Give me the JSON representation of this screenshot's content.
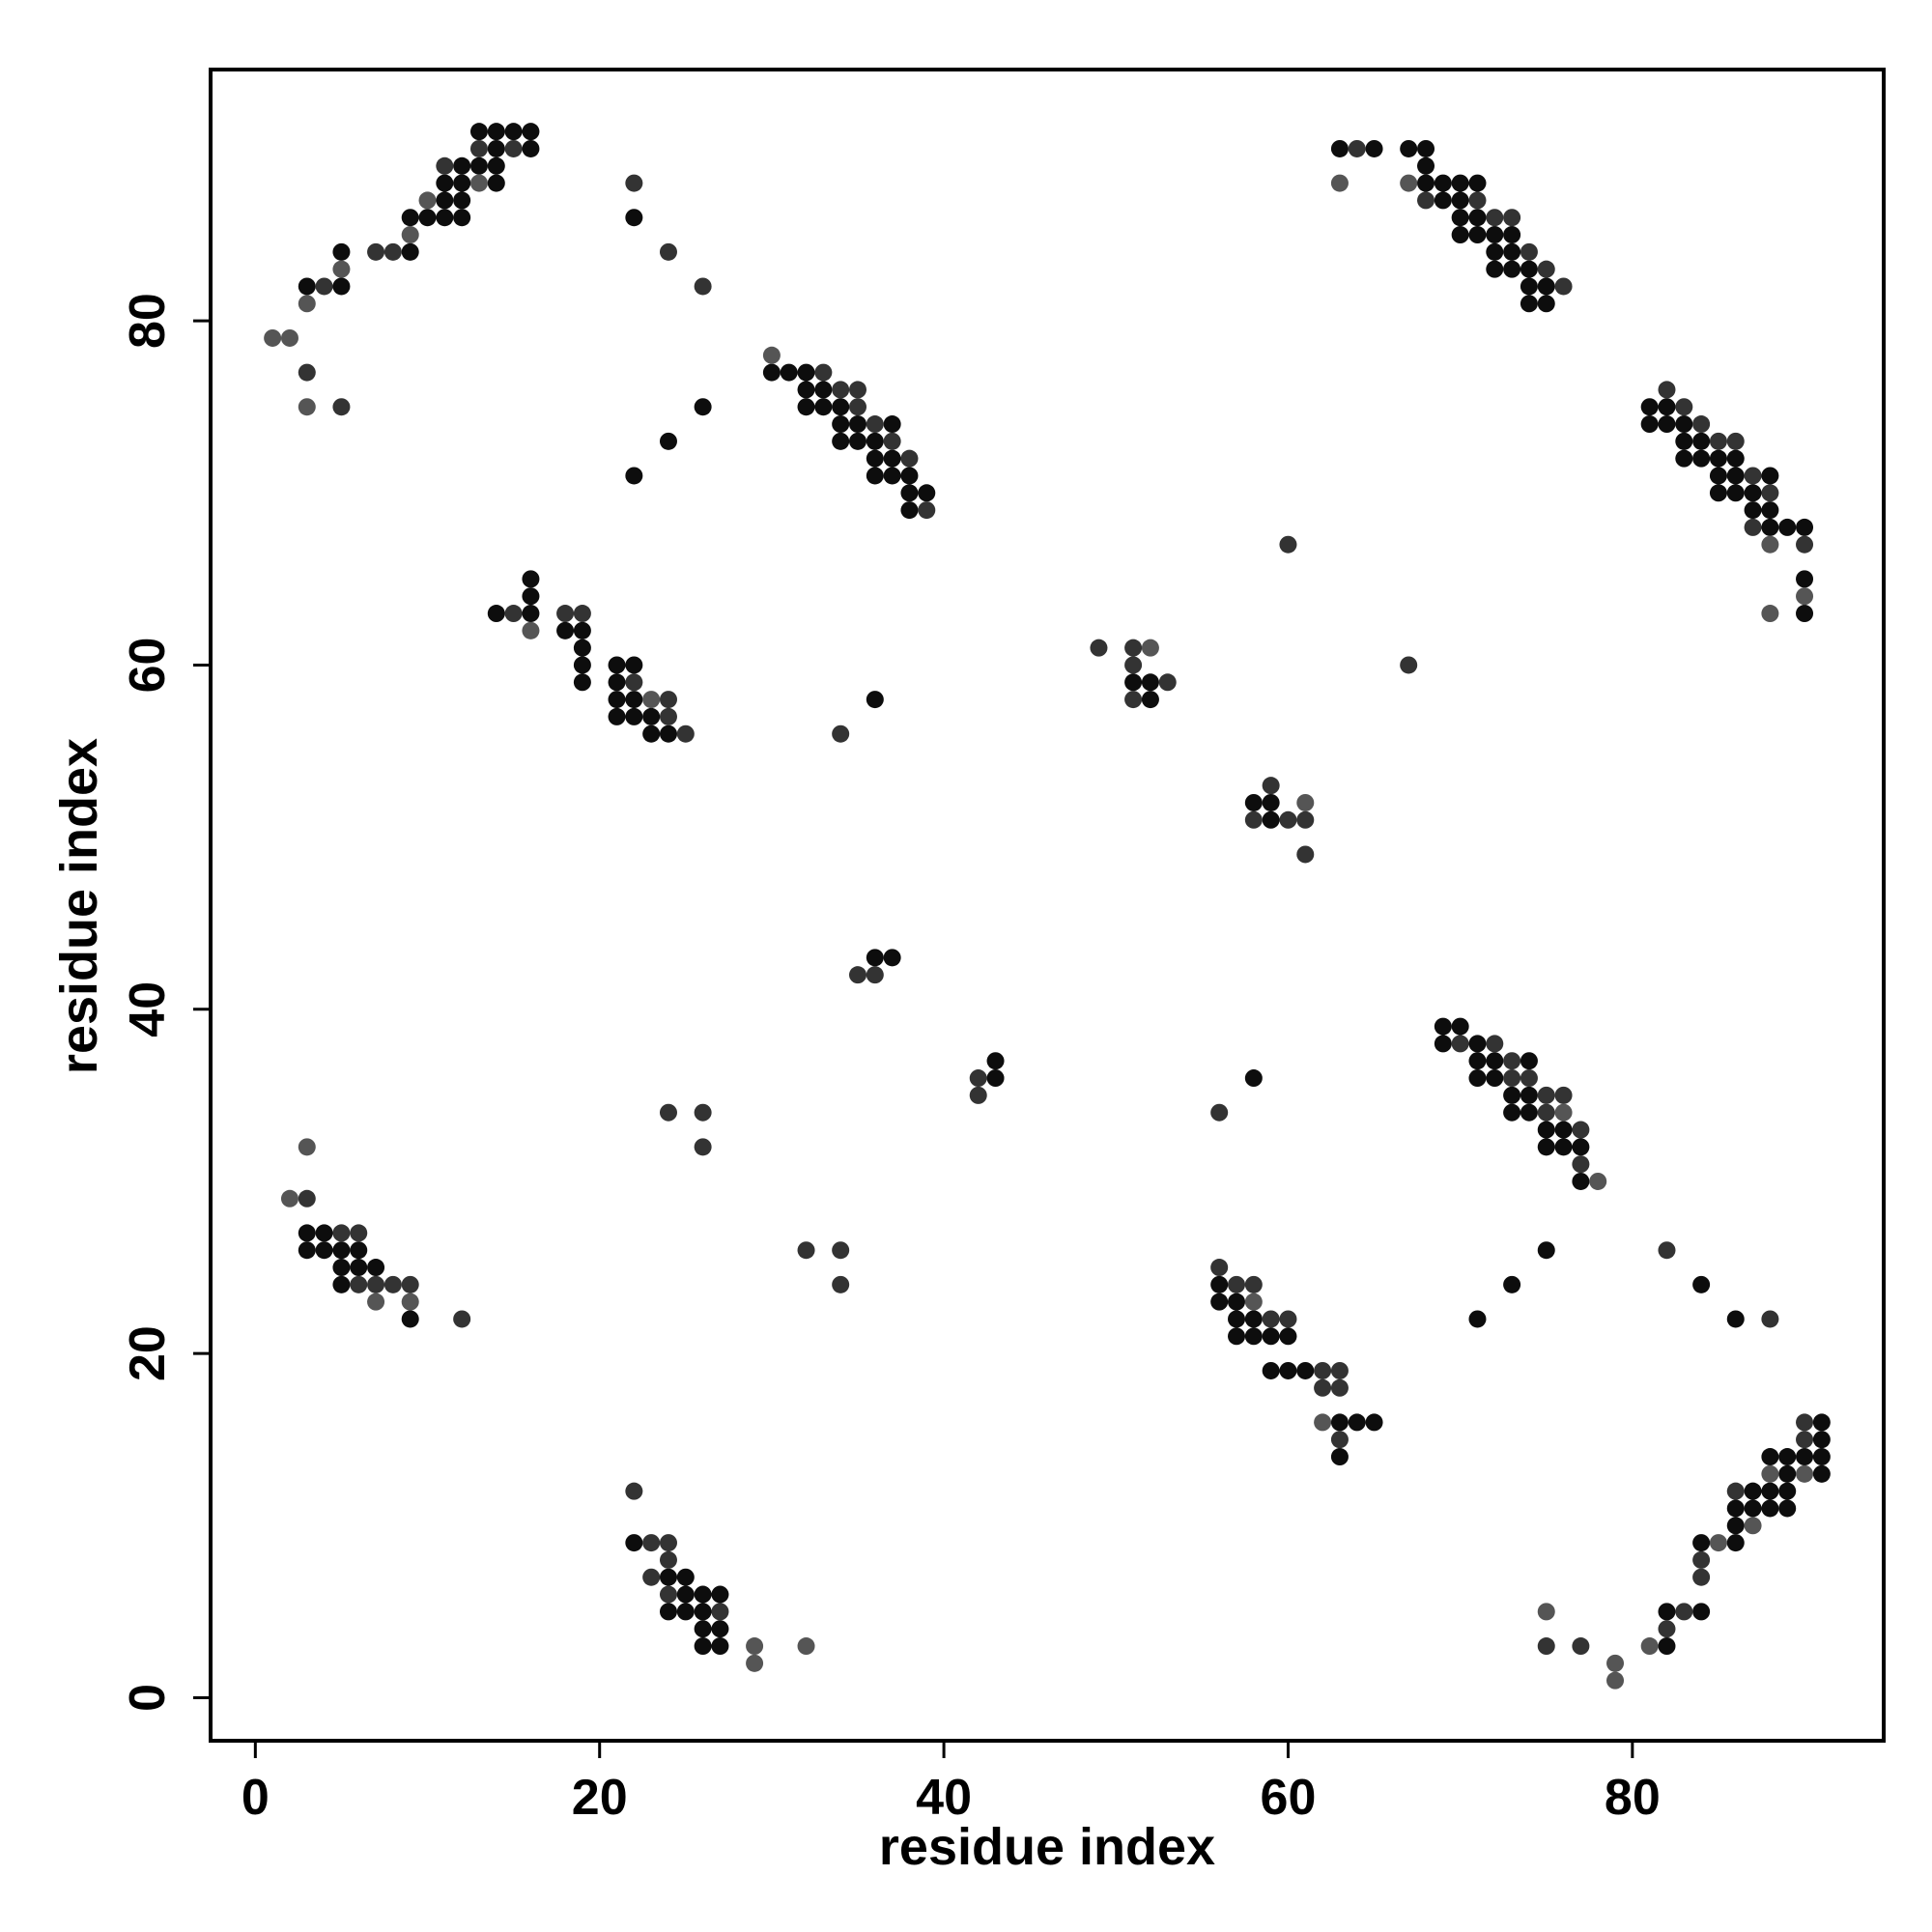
{
  "chart_data": {
    "type": "scatter",
    "xlabel": "residue index",
    "ylabel": "residue index",
    "xlim": [
      -2.6,
      94.6
    ],
    "ylim": [
      -2.5,
      94.6
    ],
    "xticks": [
      0,
      20,
      40,
      60,
      80
    ],
    "yticks": [
      0,
      20,
      40,
      60,
      80
    ],
    "grid": false,
    "series": [
      {
        "color": "#0d0d0d",
        "x": [
          3,
          5,
          5,
          9,
          9,
          10,
          11,
          11,
          11,
          12,
          12,
          12,
          12,
          13,
          13,
          14,
          14,
          14,
          14,
          15,
          16,
          16,
          22,
          26,
          24,
          22,
          30,
          31,
          32,
          32,
          32,
          33,
          33,
          34,
          34,
          34,
          35,
          35,
          36,
          36,
          36,
          37,
          37,
          37,
          38,
          38,
          38,
          39,
          14,
          16,
          16,
          16,
          18,
          19,
          19,
          19,
          19,
          21,
          21,
          21,
          21,
          22,
          22,
          22,
          23,
          23,
          24,
          36,
          36,
          37,
          43,
          43,
          51,
          52,
          52,
          58,
          59,
          59,
          63,
          65,
          67,
          68,
          68,
          68,
          69,
          69,
          70,
          70,
          70,
          70,
          71,
          71,
          71,
          72,
          72,
          72,
          73,
          73,
          73,
          74,
          74,
          74,
          75,
          75,
          81,
          81,
          82,
          82,
          83,
          83,
          83,
          84,
          84,
          85,
          85,
          85,
          86,
          86,
          86,
          87,
          87,
          88,
          88,
          88,
          89,
          90,
          90,
          90,
          3,
          3,
          4,
          4,
          5,
          5,
          5,
          6,
          6,
          7,
          9,
          22,
          24,
          24,
          25,
          25,
          25,
          26,
          26,
          26,
          26,
          27,
          27,
          27,
          58,
          56,
          56,
          57,
          57,
          57,
          58,
          58,
          59,
          60,
          59,
          60,
          61,
          63,
          63,
          64,
          65,
          69,
          70,
          69,
          71,
          71,
          71,
          72,
          72,
          73,
          73,
          74,
          74,
          74,
          75,
          75,
          76,
          76,
          77,
          77,
          75,
          73,
          71,
          84,
          86,
          82,
          82,
          84,
          84,
          86,
          86,
          86,
          87,
          87,
          88,
          88,
          88,
          89,
          89,
          89,
          89,
          90,
          91,
          91,
          91,
          91
        ],
        "y": [
          82,
          82,
          84,
          84,
          86,
          86,
          86,
          87,
          88,
          86,
          87,
          88,
          89,
          89,
          91,
          88,
          89,
          90,
          91,
          91,
          90,
          91,
          86,
          75,
          73,
          71,
          77,
          77,
          77,
          76,
          75,
          76,
          75,
          75,
          74,
          73,
          74,
          73,
          73,
          72,
          71,
          74,
          72,
          71,
          71,
          70,
          69,
          70,
          63,
          65,
          64,
          63,
          62,
          62,
          61,
          60,
          59,
          60,
          59,
          58,
          57,
          60,
          58,
          57,
          57,
          56,
          56,
          58,
          43,
          43,
          37,
          36,
          59,
          59,
          58,
          52,
          52,
          51,
          90,
          90,
          90,
          90,
          89,
          88,
          88,
          87,
          88,
          87,
          86,
          85,
          88,
          86,
          85,
          85,
          84,
          83,
          85,
          84,
          83,
          83,
          82,
          81,
          82,
          81,
          75,
          74,
          75,
          74,
          74,
          73,
          72,
          73,
          72,
          72,
          71,
          70,
          72,
          71,
          70,
          70,
          69,
          71,
          69,
          68,
          68,
          68,
          65,
          63,
          27,
          26,
          27,
          26,
          26,
          25,
          24,
          26,
          25,
          25,
          22,
          9,
          7,
          5,
          7,
          6,
          5,
          6,
          5,
          4,
          3,
          6,
          4,
          3,
          36,
          24,
          23,
          23,
          22,
          21,
          22,
          21,
          21,
          21,
          19,
          19,
          19,
          16,
          14,
          16,
          16,
          39,
          39,
          38,
          38,
          37,
          36,
          37,
          36,
          35,
          34,
          37,
          35,
          34,
          33,
          32,
          33,
          32,
          32,
          30,
          26,
          24,
          22,
          24,
          22,
          3,
          5,
          5,
          9,
          9,
          10,
          11,
          11,
          12,
          11,
          12,
          14,
          11,
          12,
          13,
          14,
          14,
          13,
          14,
          15,
          16
        ]
      },
      {
        "color": "#333333",
        "x": [
          4,
          3,
          5,
          7,
          8,
          11,
          13,
          15,
          22,
          24,
          26,
          33,
          34,
          35,
          35,
          36,
          37,
          38,
          39,
          15,
          18,
          19,
          22,
          24,
          24,
          25,
          34,
          35,
          36,
          42,
          42,
          49,
          51,
          51,
          53,
          51,
          60,
          67,
          58,
          59,
          60,
          61,
          61,
          64,
          68,
          71,
          72,
          73,
          74,
          75,
          76,
          82,
          83,
          84,
          85,
          86,
          87,
          87,
          88,
          90,
          3,
          5,
          6,
          6,
          7,
          8,
          9,
          12,
          24,
          26,
          26,
          32,
          34,
          34,
          22,
          23,
          24,
          23,
          24,
          24,
          27,
          56,
          56,
          57,
          58,
          59,
          60,
          62,
          62,
          63,
          63,
          63,
          70,
          72,
          73,
          73,
          74,
          75,
          75,
          76,
          77,
          77,
          82,
          88,
          75,
          77,
          82,
          83,
          84,
          84,
          86,
          90,
          90
        ],
        "y": [
          82,
          77,
          75,
          84,
          84,
          89,
          90,
          90,
          88,
          84,
          82,
          77,
          76,
          76,
          75,
          74,
          73,
          72,
          69,
          63,
          63,
          63,
          59,
          58,
          57,
          56,
          56,
          42,
          42,
          36,
          35,
          61,
          61,
          60,
          59,
          58,
          67,
          60,
          51,
          53,
          51,
          51,
          49,
          90,
          87,
          87,
          86,
          86,
          84,
          83,
          82,
          76,
          75,
          74,
          73,
          73,
          71,
          68,
          70,
          67,
          29,
          27,
          27,
          24,
          24,
          24,
          24,
          22,
          34,
          34,
          32,
          26,
          26,
          24,
          12,
          9,
          9,
          7,
          8,
          6,
          5,
          34,
          25,
          24,
          24,
          22,
          22,
          19,
          18,
          19,
          18,
          15,
          38,
          38,
          37,
          36,
          36,
          35,
          34,
          35,
          33,
          31,
          26,
          22,
          3,
          3,
          4,
          5,
          7,
          8,
          12,
          15,
          16
        ]
      },
      {
        "color": "#555555",
        "x": [
          1,
          2,
          3,
          5,
          3,
          9,
          10,
          13,
          16,
          30,
          23,
          52,
          61,
          63,
          67,
          88,
          90,
          88,
          3,
          2,
          7,
          9,
          29,
          29,
          32,
          58,
          62,
          76,
          78,
          75,
          79,
          79,
          81,
          85,
          87,
          88,
          90
        ],
        "y": [
          79,
          79,
          81,
          83,
          75,
          85,
          87,
          88,
          62,
          78,
          58,
          61,
          52,
          88,
          88,
          67,
          64,
          63,
          32,
          29,
          23,
          23,
          3,
          2,
          3,
          23,
          16,
          34,
          30,
          5,
          2,
          1,
          3,
          9,
          10,
          13,
          13
        ]
      }
    ]
  }
}
